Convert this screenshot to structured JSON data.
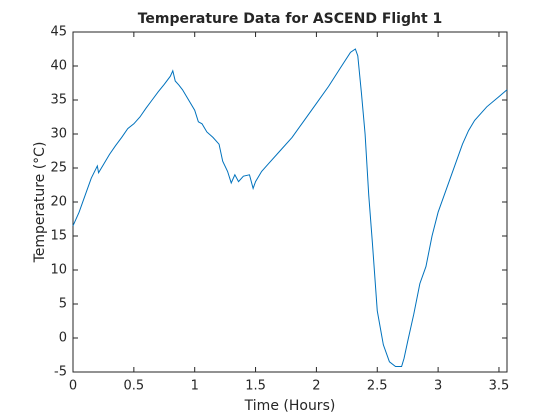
{
  "chart_data": {
    "type": "line",
    "title": "Temperature Data for ASCEND Flight 1",
    "xlabel": "Time (Hours)",
    "ylabel": "Temperature (°C)",
    "xlim": [
      0,
      3.566
    ],
    "ylim": [
      -5,
      45
    ],
    "xticks": [
      0,
      0.5,
      1,
      1.5,
      2,
      2.5,
      3,
      3.5
    ],
    "yticks": [
      -5,
      0,
      5,
      10,
      15,
      20,
      25,
      30,
      35,
      40,
      45
    ],
    "grid": false,
    "x": [
      0,
      0.05,
      0.1,
      0.15,
      0.2,
      0.21,
      0.25,
      0.3,
      0.35,
      0.4,
      0.45,
      0.5,
      0.55,
      0.6,
      0.65,
      0.7,
      0.75,
      0.8,
      0.82,
      0.84,
      0.87,
      0.9,
      0.95,
      1.0,
      1.03,
      1.06,
      1.1,
      1.15,
      1.2,
      1.23,
      1.27,
      1.3,
      1.33,
      1.36,
      1.4,
      1.45,
      1.48,
      1.5,
      1.55,
      1.6,
      1.7,
      1.8,
      1.9,
      2.0,
      2.1,
      2.2,
      2.28,
      2.32,
      2.34,
      2.37,
      2.4,
      2.43,
      2.46,
      2.5,
      2.55,
      2.6,
      2.65,
      2.7,
      2.72,
      2.75,
      2.8,
      2.85,
      2.9,
      2.95,
      3.0,
      3.05,
      3.1,
      3.15,
      3.2,
      3.25,
      3.3,
      3.4,
      3.5,
      3.566
    ],
    "series": [
      {
        "name": "Temperature",
        "color": "#0072bd",
        "values": [
          16.5,
          18.5,
          21,
          23.5,
          25.3,
          24.3,
          25.5,
          27,
          28.3,
          29.5,
          30.8,
          31.5,
          32.5,
          33.8,
          35,
          36.2,
          37.3,
          38.5,
          39.3,
          37.8,
          37.2,
          36.5,
          35,
          33.5,
          31.8,
          31.5,
          30.3,
          29.5,
          28.5,
          26,
          24.5,
          22.8,
          24,
          23,
          23.8,
          24,
          22,
          23,
          24.5,
          25.5,
          27.5,
          29.5,
          32,
          34.5,
          37,
          39.8,
          42,
          42.5,
          41.5,
          36,
          30,
          21,
          14,
          4,
          -1,
          -3.5,
          -4.2,
          -4.2,
          -3,
          -0.5,
          3.5,
          8,
          10.5,
          15,
          18.5,
          21,
          23.5,
          26,
          28.5,
          30.5,
          32,
          34,
          35.5,
          36.5
        ]
      }
    ]
  }
}
